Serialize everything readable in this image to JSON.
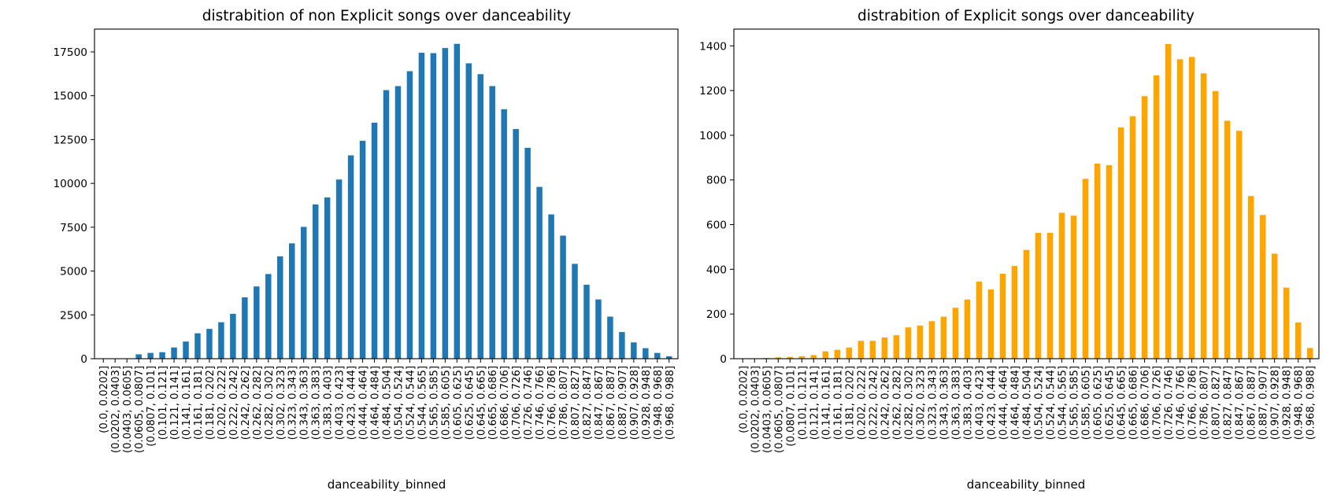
{
  "chart_data": [
    {
      "type": "bar",
      "title": "distrabition of non Explicit songs over danceability",
      "xlabel": "danceability_binned",
      "ylabel": "",
      "color": "#1f77b4",
      "ylim": [
        0,
        18800
      ],
      "yticks": [
        0,
        2500,
        5000,
        7500,
        10000,
        12500,
        15000,
        17500
      ],
      "ytick_labels": [
        "0",
        "2500",
        "5000",
        "7500",
        "10000",
        "12500",
        "15000",
        "17500"
      ],
      "grid": false,
      "categories": [
        "(0.0, 0.0202]",
        "(0.0202, 0.0403]",
        "(0.0403, 0.0605]",
        "(0.0605, 0.0807]",
        "(0.0807, 0.101]",
        "(0.101, 0.121]",
        "(0.121, 0.141]",
        "(0.141, 0.161]",
        "(0.161, 0.181]",
        "(0.181, 0.202]",
        "(0.202, 0.222]",
        "(0.222, 0.242]",
        "(0.242, 0.262]",
        "(0.262, 0.282]",
        "(0.282, 0.302]",
        "(0.302, 0.323]",
        "(0.323, 0.343]",
        "(0.343, 0.363]",
        "(0.363, 0.383]",
        "(0.383, 0.403]",
        "(0.403, 0.423]",
        "(0.423, 0.444]",
        "(0.444, 0.464]",
        "(0.464, 0.484]",
        "(0.484, 0.504]",
        "(0.504, 0.524]",
        "(0.524, 0.544]",
        "(0.544, 0.565]",
        "(0.565, 0.585]",
        "(0.585, 0.605]",
        "(0.605, 0.625]",
        "(0.625, 0.645]",
        "(0.645, 0.665]",
        "(0.665, 0.686]",
        "(0.686, 0.706]",
        "(0.706, 0.726]",
        "(0.726, 0.746]",
        "(0.746, 0.766]",
        "(0.766, 0.786]",
        "(0.786, 0.807]",
        "(0.807, 0.827]",
        "(0.827, 0.847]",
        "(0.847, 0.867]",
        "(0.867, 0.887]",
        "(0.887, 0.907]",
        "(0.907, 0.928]",
        "(0.928, 0.948]",
        "(0.948, 0.968]",
        "(0.968, 0.988]"
      ],
      "values": [
        10,
        5,
        15,
        250,
        330,
        370,
        640,
        980,
        1450,
        1700,
        2080,
        2560,
        3500,
        4120,
        4830,
        5840,
        6580,
        7520,
        8800,
        9200,
        10220,
        11600,
        12430,
        13460,
        15320,
        15550,
        16400,
        17450,
        17430,
        17720,
        17960,
        16850,
        16230,
        15550,
        14230,
        13100,
        12030,
        9800,
        8230,
        7020,
        5410,
        4220,
        3380,
        2400,
        1520,
        930,
        600,
        330,
        140
      ]
    },
    {
      "type": "bar",
      "title": "distrabition of Explicit songs over danceability",
      "xlabel": "danceability_binned",
      "ylabel": "",
      "color": "#ffa500",
      "ylim": [
        0,
        1475
      ],
      "yticks": [
        0,
        200,
        400,
        600,
        800,
        1000,
        1200,
        1400
      ],
      "ytick_labels": [
        "0",
        "200",
        "400",
        "600",
        "800",
        "1000",
        "1200",
        "1400"
      ],
      "grid": false,
      "categories": [
        "(0.0, 0.0202]",
        "(0.0202, 0.0403]",
        "(0.0403, 0.0605]",
        "(0.0605, 0.0807]",
        "(0.0807, 0.101]",
        "(0.101, 0.121]",
        "(0.121, 0.141]",
        "(0.141, 0.161]",
        "(0.161, 0.181]",
        "(0.181, 0.202]",
        "(0.202, 0.222]",
        "(0.222, 0.242]",
        "(0.242, 0.262]",
        "(0.262, 0.282]",
        "(0.282, 0.302]",
        "(0.302, 0.323]",
        "(0.323, 0.343]",
        "(0.343, 0.363]",
        "(0.363, 0.383]",
        "(0.383, 0.403]",
        "(0.403, 0.423]",
        "(0.423, 0.444]",
        "(0.444, 0.464]",
        "(0.464, 0.484]",
        "(0.484, 0.504]",
        "(0.504, 0.524]",
        "(0.524, 0.544]",
        "(0.544, 0.565]",
        "(0.565, 0.585]",
        "(0.585, 0.605]",
        "(0.605, 0.625]",
        "(0.625, 0.645]",
        "(0.645, 0.665]",
        "(0.665, 0.686]",
        "(0.686, 0.706]",
        "(0.706, 0.726]",
        "(0.726, 0.746]",
        "(0.746, 0.766]",
        "(0.766, 0.786]",
        "(0.786, 0.807]",
        "(0.807, 0.827]",
        "(0.827, 0.847]",
        "(0.847, 0.867]",
        "(0.867, 0.887]",
        "(0.887, 0.907]",
        "(0.907, 0.928]",
        "(0.928, 0.948]",
        "(0.948, 0.968]",
        "(0.968, 0.988]"
      ],
      "values": [
        0,
        1,
        3,
        6,
        8,
        11,
        16,
        33,
        40,
        50,
        80,
        80,
        95,
        105,
        140,
        148,
        168,
        188,
        228,
        265,
        345,
        310,
        380,
        415,
        487,
        563,
        563,
        653,
        640,
        805,
        873,
        866,
        1035,
        1085,
        1175,
        1268,
        1408,
        1340,
        1350,
        1277,
        1198,
        1065,
        1020,
        728,
        643,
        470,
        318,
        162,
        48
      ]
    }
  ]
}
